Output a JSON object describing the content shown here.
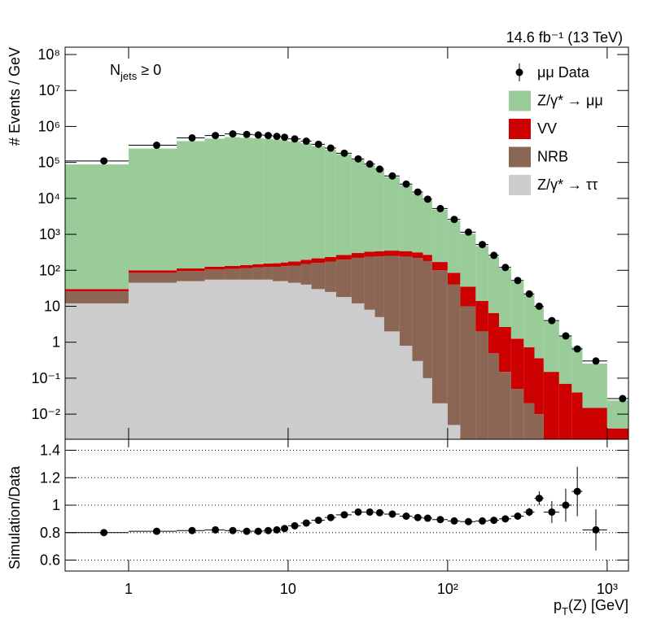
{
  "chart_data": {
    "type": "histogram",
    "title": "14.6 fb⁻¹ (13 TeV)",
    "annotation": {
      "base": "N",
      "sub": "jets",
      "rest": " ≥ 0"
    },
    "y_label": "# Events / GeV",
    "x_label": {
      "base": "p",
      "sub": "T",
      "rest": "(Z) [GeV]"
    },
    "log_x": true,
    "log_y": true,
    "legend": "top-right",
    "bins": [
      0.4,
      1,
      2,
      3,
      4,
      5,
      6,
      7,
      8,
      9,
      10,
      12,
      14,
      17,
      20,
      25,
      30,
      35,
      40,
      50,
      60,
      70,
      80,
      100,
      120,
      150,
      180,
      210,
      250,
      300,
      350,
      400,
      500,
      600,
      700,
      1000,
      1500
    ],
    "xlim": [
      0.4,
      1360
    ],
    "xticks": [
      1,
      10,
      {
        "value": 100,
        "label": "10²"
      },
      {
        "value": 1000,
        "label": "10³"
      }
    ],
    "ylim": [
      0.002,
      160000000
    ],
    "yticks": [
      {
        "value": 0.01,
        "label": "10⁻²"
      },
      {
        "value": 0.1,
        "label": "10⁻¹"
      },
      1,
      10,
      {
        "value": 100,
        "label": "10²"
      },
      {
        "value": 1000,
        "label": "10³"
      },
      {
        "value": 10000,
        "label": "10⁴"
      },
      {
        "value": 100000,
        "label": "10⁵"
      },
      {
        "value": 1000000,
        "label": "10⁶"
      },
      {
        "value": 10000000,
        "label": "10⁷"
      },
      {
        "value": 100000000,
        "label": "10⁸"
      }
    ],
    "data": {
      "name": "μμ Data",
      "color": "#000000",
      "values": [
        110000,
        300000,
        480000,
        560000,
        620000,
        600000,
        580000,
        560000,
        530000,
        500000,
        450000,
        390000,
        320000,
        250000,
        180000,
        125000,
        90000,
        65000,
        42000,
        25000,
        15000,
        9500,
        5200,
        2600,
        1150,
        520,
        260,
        120,
        52,
        22,
        10,
        4,
        1.5,
        0.65,
        0.3,
        0.027
      ]
    },
    "series": [
      {
        "name": "Z/γ* → μμ",
        "color": "#99cc99",
        "values": [
          88000,
          243000,
          391000,
          459000,
          505000,
          486000,
          470000,
          456000,
          435000,
          415000,
          382000,
          339000,
          285000,
          227000,
          167000,
          119000,
          85000,
          61000,
          39000,
          23000,
          13600,
          8600,
          4650,
          2300,
          1010,
          460,
          230,
          108,
          47,
          20,
          10,
          3.6,
          1.4,
          0.7,
          0.24,
          0.02
        ]
      },
      {
        "name": "VV",
        "color": "#cc0000",
        "values": [
          4,
          15,
          18,
          20,
          22,
          25,
          28,
          30,
          32,
          35,
          40,
          45,
          55,
          60,
          70,
          80,
          90,
          95,
          100,
          100,
          95,
          90,
          70,
          45,
          25,
          12,
          6,
          2.5,
          1.2,
          0.7,
          0.35,
          0.15,
          0.07,
          0.04,
          0.015,
          0.004
        ]
      },
      {
        "name": "NRB",
        "color": "#8c6654",
        "values": [
          14,
          40,
          45,
          50,
          55,
          60,
          65,
          70,
          75,
          80,
          90,
          110,
          130,
          150,
          180,
          210,
          230,
          240,
          250,
          240,
          220,
          180,
          100,
          40,
          10,
          2,
          0.5,
          0.15,
          0.05,
          0.02,
          0.01,
          0,
          0,
          0,
          0,
          0
        ]
      },
      {
        "name": "Z/γ* → ττ",
        "color": "#cccccc",
        "values": [
          12,
          45,
          50,
          55,
          55,
          55,
          55,
          55,
          50,
          50,
          45,
          40,
          30,
          25,
          18,
          12,
          8,
          5,
          2,
          0.8,
          0.3,
          0.1,
          0.02,
          0.005,
          0,
          0,
          0,
          0,
          0,
          0,
          0,
          0,
          0,
          0,
          0,
          0
        ]
      }
    ],
    "ratio": {
      "y_label": "Simulation/Data",
      "values": [
        0.8,
        0.81,
        0.815,
        0.82,
        0.815,
        0.81,
        0.81,
        0.815,
        0.82,
        0.83,
        0.85,
        0.87,
        0.89,
        0.91,
        0.93,
        0.95,
        0.95,
        0.945,
        0.935,
        0.92,
        0.91,
        0.905,
        0.895,
        0.885,
        0.88,
        0.885,
        0.89,
        0.9,
        0.92,
        0.95,
        1.05,
        0.95,
        1.0,
        1.1,
        0.82,
        null
      ],
      "errors": [
        0.005,
        0.005,
        0.005,
        0.005,
        0.005,
        0.005,
        0.005,
        0.005,
        0.005,
        0.005,
        0.005,
        0.005,
        0.005,
        0.005,
        0.005,
        0.005,
        0.005,
        0.005,
        0.005,
        0.005,
        0.005,
        0.005,
        0.005,
        0.005,
        0.006,
        0.008,
        0.01,
        0.015,
        0.02,
        0.03,
        0.05,
        0.08,
        0.12,
        0.18,
        0.15,
        null
      ],
      "ylim": [
        0.52,
        1.48
      ],
      "yticks": [
        0.6,
        0.8,
        1,
        1.2,
        1.4
      ],
      "grid": true
    }
  }
}
